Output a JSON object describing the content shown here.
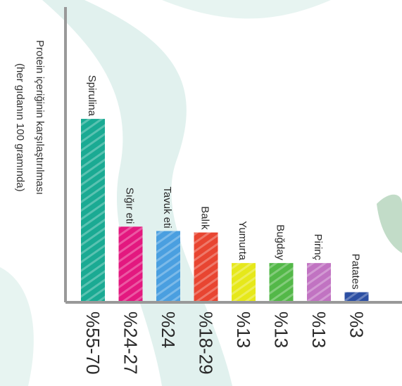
{
  "chart_data": {
    "type": "bar",
    "orientation": "vertical-text",
    "title": "",
    "ylabel_lines": [
      "Protein içeriğinin karşılaştırılması",
      "(her gıdanın 100 gramında)"
    ],
    "categories": [
      "Spirulina",
      "Sığır eti",
      "Tavuk eti",
      "Balık",
      "Yumurta",
      "Buğday",
      "Pirinç",
      "Patates"
    ],
    "value_labels": [
      "%55-70",
      "%24-27",
      "%24",
      "%18-29",
      "%13",
      "%13",
      "%13",
      "%3"
    ],
    "values": [
      62.5,
      25.5,
      24,
      23.5,
      13,
      13,
      13,
      3
    ],
    "colors": [
      "#1aaa93",
      "#e3187f",
      "#4a9fe0",
      "#e84531",
      "#e6e81a",
      "#53b848",
      "#c173c2",
      "#2c4fa3"
    ],
    "ylim": [
      0,
      70
    ],
    "grid": false,
    "legend": "none"
  }
}
